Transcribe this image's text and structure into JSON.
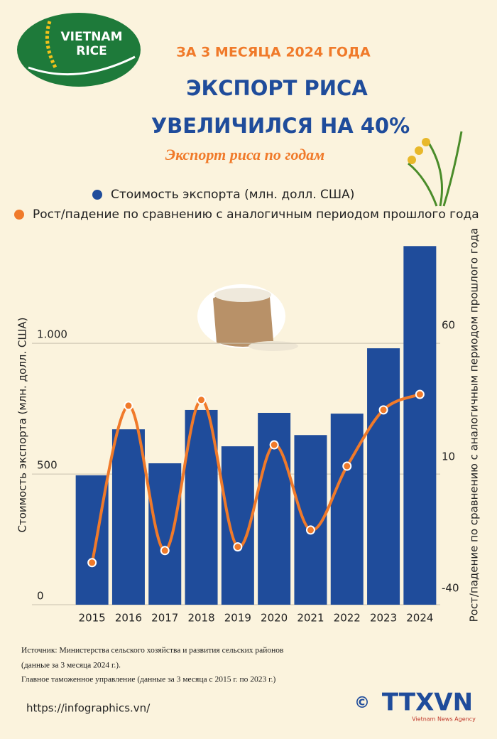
{
  "logo": {
    "line1": "VIETNAM",
    "line2": "RICE"
  },
  "header": {
    "kicker": "ЗА 3 МЕСЯЦА 2024 ГОДА",
    "title_line1": "ЭКСПОРТ РИСА",
    "title_line2": "УВЕЛИЧИЛСЯ НА 40%"
  },
  "chart_data": {
    "type": "bar_line",
    "title": "Экспорт риса по годам",
    "categories": [
      "2015",
      "2016",
      "2017",
      "2018",
      "2019",
      "2020",
      "2021",
      "2022",
      "2023",
      "2024"
    ],
    "series": [
      {
        "name": "Стоимость экспорта (млн. долл. США)",
        "type": "bar",
        "color": "#1f4c9b",
        "axis": "y",
        "values": [
          495,
          671,
          541,
          745,
          606,
          734,
          649,
          731,
          981,
          1372
        ]
      },
      {
        "name": "Рост/падение по сравнению с аналогичным периодом прошлого года",
        "type": "line",
        "color": "#f07a2a",
        "axis": "y2",
        "values": [
          -27,
          32.7,
          -22.4,
          34.9,
          -21,
          17.8,
          -14.6,
          9.7,
          31.1,
          37
        ]
      }
    ],
    "y_label": "Стоимость экспорта (млн. долл. США)",
    "y2_label": "Рост/падение по сравнению с аналогичным периодом прошлого года",
    "ylim": [
      0,
      1400
    ],
    "yticks": [
      0,
      500,
      {
        "value": 1000,
        "label": "1.000"
      }
    ],
    "y2lim": [
      -43,
      96.2
    ],
    "y2ticks": [
      -40,
      10,
      60
    ],
    "grid": true
  },
  "footer": {
    "source_line1": "Источник: Министерства сельского хозяйства и развития сельских районов",
    "source_line2": "(данные за 3 месяца 2024 г.).",
    "source_line3": "Главное таможенное управление (данные за 3 месяца с 2015 г. по 2023 г.)",
    "url": "https://infographics.vn/",
    "copyright": "©",
    "agency": "TTXVN",
    "agency_sub": "Vietnam News Agency"
  }
}
